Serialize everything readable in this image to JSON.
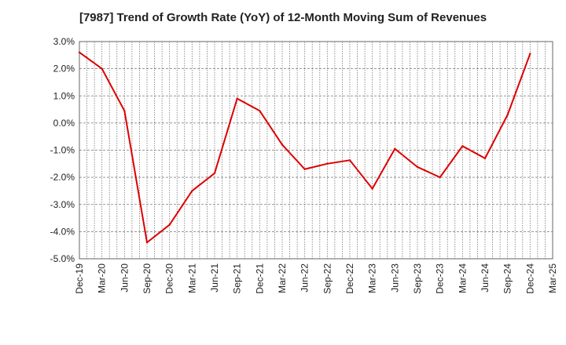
{
  "chart_data": {
    "type": "line",
    "title": "[7987]  Trend of Growth Rate (YoY) of 12-Month Moving Sum of Revenues",
    "xlabel": "",
    "ylabel": "",
    "x": [
      "Dec-19",
      "Mar-20",
      "Jun-20",
      "Sep-20",
      "Dec-20",
      "Mar-21",
      "Jun-21",
      "Sep-21",
      "Dec-21",
      "Mar-22",
      "Jun-22",
      "Sep-22",
      "Dec-22",
      "Mar-23",
      "Jun-23",
      "Sep-23",
      "Dec-23",
      "Mar-24",
      "Jun-24",
      "Sep-24",
      "Dec-24",
      "Mar-25"
    ],
    "series": [
      {
        "color": "#dd0000",
        "values": [
          2.6,
          2.0,
          0.45,
          -4.4,
          -3.75,
          -2.5,
          -1.85,
          0.9,
          0.45,
          -0.8,
          -1.7,
          -1.5,
          -1.37,
          -2.42,
          -0.95,
          -1.62,
          -2.0,
          -0.85,
          -1.3,
          0.3,
          2.55,
          null
        ]
      }
    ],
    "ylim": [
      -5.0,
      3.0
    ],
    "yticks": [
      3.0,
      2.0,
      1.0,
      0.0,
      -1.0,
      -2.0,
      -3.0,
      -4.0,
      -5.0
    ],
    "ytick_labels": [
      "3.0%",
      "2.0%",
      "1.0%",
      "0.0%",
      "-1.0%",
      "-2.0%",
      "-3.0%",
      "-4.0%",
      "-5.0%"
    ],
    "grid": true,
    "legend": "none"
  }
}
